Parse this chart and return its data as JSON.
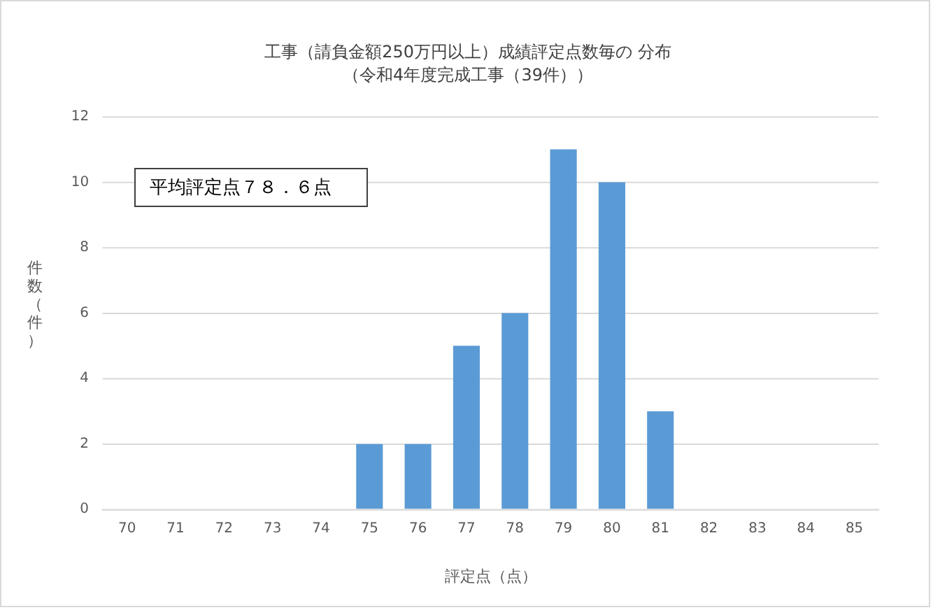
{
  "chart_data": {
    "type": "bar",
    "title": "工事（請負金額250万円以上）成績評定点数毎の 分布",
    "subtitle": "（令和4年度完成工事（39件））",
    "xlabel": "評定点（点）",
    "ylabel": "件数（件）",
    "categories": [
      "70",
      "71",
      "72",
      "73",
      "74",
      "75",
      "76",
      "77",
      "78",
      "79",
      "80",
      "81",
      "82",
      "83",
      "84",
      "85"
    ],
    "values": [
      0,
      0,
      0,
      0,
      0,
      2,
      2,
      5,
      6,
      11,
      10,
      3,
      0,
      0,
      0,
      0
    ],
    "color": "#5b9bd5",
    "ylim": [
      0,
      12
    ],
    "yticks": [
      0,
      2,
      4,
      6,
      8,
      10,
      12
    ],
    "grid": "y",
    "legend": false,
    "annotations": [
      "平均評定点７８．６点"
    ]
  }
}
